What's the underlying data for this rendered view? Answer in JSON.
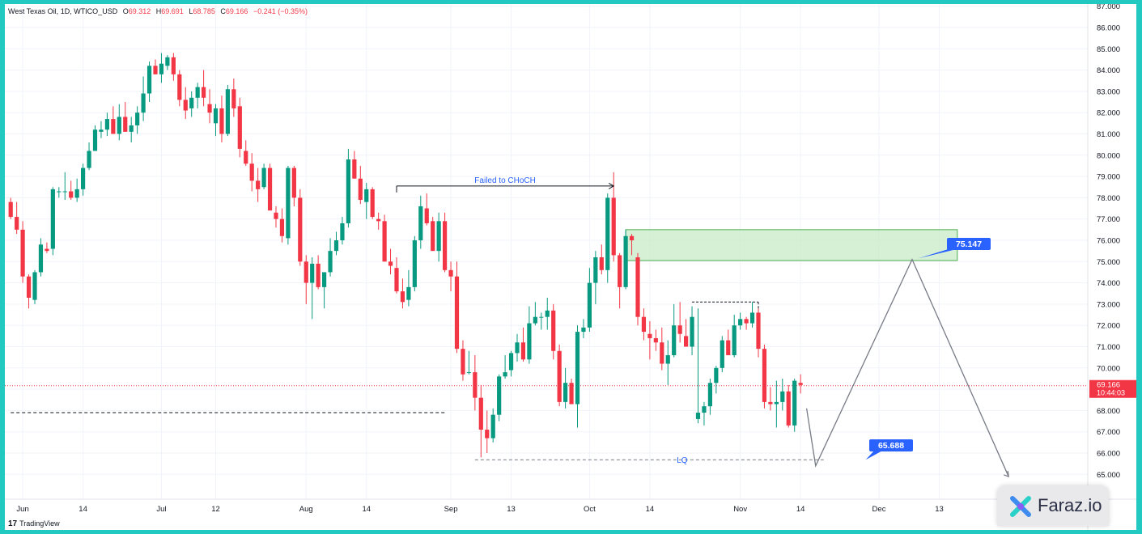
{
  "header": {
    "symbol": "West Texas Oil, 1D, WTICO_USD",
    "open_label": "O",
    "open": "69.312",
    "high_label": "H",
    "high": "69.691",
    "low_label": "L",
    "low": "68.785",
    "close_label": "C",
    "close": "69.166",
    "change": "−0.241 (−0.35%)"
  },
  "footer": {
    "brand": "TradingView"
  },
  "watermark": {
    "text": "Faraz.io"
  },
  "colors": {
    "up": "#089981",
    "down": "#f23645",
    "zone": "#c8ebc8",
    "label_bg": "#2962ff",
    "frame": "#22c9c0"
  },
  "chart_data": {
    "type": "candlestick",
    "ylim": [
      64.6,
      87.0
    ],
    "y_ticks": [
      "65.000",
      "66.000",
      "67.000",
      "68.000",
      "69.000",
      "70.000",
      "71.000",
      "72.000",
      "73.000",
      "74.000",
      "75.000",
      "76.000",
      "77.000",
      "78.000",
      "79.000",
      "80.000",
      "81.000",
      "82.000",
      "83.000",
      "84.000",
      "85.000",
      "86.000",
      "87.000"
    ],
    "x_labels": [
      {
        "label": "Jun",
        "idx": 2
      },
      {
        "label": "14",
        "idx": 12
      },
      {
        "label": "Jul",
        "idx": 25
      },
      {
        "label": "12",
        "idx": 34
      },
      {
        "label": "Aug",
        "idx": 49
      },
      {
        "label": "14",
        "idx": 59
      },
      {
        "label": "Sep",
        "idx": 73
      },
      {
        "label": "13",
        "idx": 83
      },
      {
        "label": "Oct",
        "idx": 96
      },
      {
        "label": "14",
        "idx": 106
      },
      {
        "label": "Nov",
        "idx": 121
      },
      {
        "label": "14",
        "idx": 131
      },
      {
        "label": "Dec",
        "idx": 144
      },
      {
        "label": "13",
        "idx": 154
      }
    ],
    "last_price": {
      "value": "69.166",
      "countdown": "10:44:03"
    },
    "candles": [
      [
        77.8,
        78.0,
        77.0,
        77.1
      ],
      [
        77.1,
        77.8,
        76.3,
        76.5
      ],
      [
        76.5,
        76.9,
        74.0,
        74.3
      ],
      [
        74.3,
        74.4,
        72.8,
        73.3
      ],
      [
        73.2,
        74.6,
        73.0,
        74.5
      ],
      [
        74.5,
        76.1,
        74.3,
        75.8
      ],
      [
        75.6,
        75.9,
        75.4,
        75.5
      ],
      [
        75.6,
        78.5,
        75.3,
        78.4
      ],
      [
        78.3,
        78.5,
        78.0,
        78.3
      ],
      [
        78.3,
        79.2,
        77.9,
        78.3
      ],
      [
        78.3,
        78.8,
        77.9,
        78.0
      ],
      [
        78.0,
        78.9,
        77.8,
        78.4
      ],
      [
        78.4,
        79.6,
        78.1,
        79.4
      ],
      [
        79.4,
        80.6,
        79.3,
        80.2
      ],
      [
        80.2,
        81.4,
        80.2,
        81.2
      ],
      [
        81.1,
        81.6,
        80.8,
        81.2
      ],
      [
        81.2,
        82.0,
        80.9,
        81.7
      ],
      [
        81.7,
        82.3,
        81.0,
        81.0
      ],
      [
        81.0,
        82.4,
        80.7,
        81.8
      ],
      [
        81.8,
        82.5,
        81.1,
        81.1
      ],
      [
        81.1,
        81.8,
        80.6,
        81.4
      ],
      [
        81.4,
        82.3,
        81.0,
        82.0
      ],
      [
        82.0,
        83.7,
        81.6,
        82.9
      ],
      [
        82.9,
        84.4,
        82.5,
        84.2
      ],
      [
        84.2,
        84.5,
        83.8,
        83.8
      ],
      [
        83.8,
        84.8,
        83.4,
        84.3
      ],
      [
        84.2,
        84.7,
        84.0,
        84.6
      ],
      [
        84.6,
        84.8,
        83.5,
        83.8
      ],
      [
        83.8,
        84.0,
        82.3,
        82.6
      ],
      [
        82.6,
        83.2,
        81.7,
        82.1
      ],
      [
        82.2,
        83.0,
        81.8,
        82.7
      ],
      [
        82.7,
        83.4,
        82.2,
        83.2
      ],
      [
        83.2,
        84.0,
        82.3,
        82.7
      ],
      [
        82.4,
        83.1,
        81.5,
        82.0
      ],
      [
        81.5,
        82.4,
        80.9,
        82.2
      ],
      [
        82.2,
        82.8,
        80.6,
        81.0
      ],
      [
        81.0,
        83.3,
        80.9,
        83.1
      ],
      [
        83.1,
        83.6,
        81.8,
        82.2
      ],
      [
        82.3,
        82.7,
        79.9,
        80.3
      ],
      [
        80.2,
        80.7,
        79.5,
        79.6
      ],
      [
        79.6,
        80.1,
        78.3,
        78.8
      ],
      [
        78.8,
        79.4,
        77.8,
        78.4
      ],
      [
        78.5,
        79.6,
        78.4,
        79.4
      ],
      [
        79.4,
        79.6,
        77.5,
        77.4
      ],
      [
        77.3,
        77.6,
        76.6,
        77.0
      ],
      [
        77.0,
        77.5,
        75.9,
        76.2
      ],
      [
        76.1,
        79.5,
        75.8,
        79.4
      ],
      [
        79.4,
        79.5,
        77.6,
        78.0
      ],
      [
        78.0,
        78.4,
        74.8,
        75.0
      ],
      [
        75.0,
        75.3,
        73.0,
        74.0
      ],
      [
        74.0,
        75.2,
        72.3,
        74.9
      ],
      [
        74.9,
        75.3,
        73.7,
        73.8
      ],
      [
        73.8,
        74.5,
        72.8,
        74.5
      ],
      [
        74.5,
        76.1,
        74.3,
        75.5
      ],
      [
        75.5,
        76.4,
        75.3,
        76.0
      ],
      [
        76.0,
        77.1,
        75.8,
        76.8
      ],
      [
        76.8,
        80.3,
        76.6,
        79.8
      ],
      [
        79.8,
        80.2,
        78.9,
        78.9
      ],
      [
        78.9,
        79.5,
        77.7,
        77.9
      ],
      [
        77.8,
        78.7,
        77.0,
        78.4
      ],
      [
        78.4,
        78.5,
        77.0,
        77.1
      ],
      [
        77.0,
        77.3,
        76.5,
        76.9
      ],
      [
        76.9,
        77.2,
        75.0,
        75.0
      ],
      [
        75.0,
        75.6,
        74.4,
        74.8
      ],
      [
        74.7,
        75.2,
        73.5,
        73.6
      ],
      [
        73.6,
        74.2,
        72.8,
        73.1
      ],
      [
        73.2,
        74.6,
        72.9,
        73.8
      ],
      [
        73.8,
        76.2,
        73.6,
        76.0
      ],
      [
        76.0,
        78.1,
        75.6,
        77.6
      ],
      [
        77.5,
        78.2,
        76.7,
        76.8
      ],
      [
        76.9,
        77.1,
        75.5,
        75.5
      ],
      [
        75.5,
        77.3,
        75.0,
        76.9
      ],
      [
        76.9,
        77.3,
        74.5,
        74.6
      ],
      [
        74.6,
        75.0,
        73.6,
        74.3
      ],
      [
        74.3,
        75.0,
        70.7,
        70.9
      ],
      [
        70.9,
        71.3,
        69.4,
        69.7
      ],
      [
        69.8,
        70.8,
        69.7,
        69.8
      ],
      [
        69.8,
        70.6,
        68.0,
        68.6
      ],
      [
        68.6,
        69.2,
        65.8,
        67.1
      ],
      [
        67.1,
        68.0,
        66.0,
        66.7
      ],
      [
        66.7,
        68.1,
        66.5,
        67.8
      ],
      [
        67.8,
        69.7,
        67.5,
        69.6
      ],
      [
        69.6,
        70.6,
        69.5,
        69.8
      ],
      [
        69.9,
        70.8,
        69.6,
        70.7
      ],
      [
        70.7,
        71.6,
        70.3,
        71.2
      ],
      [
        71.2,
        71.9,
        70.3,
        70.4
      ],
      [
        70.4,
        72.9,
        70.2,
        72.1
      ],
      [
        72.1,
        73.1,
        72.0,
        72.4
      ],
      [
        72.4,
        72.6,
        71.8,
        72.4
      ],
      [
        72.4,
        73.3,
        71.8,
        72.7
      ],
      [
        72.7,
        73.0,
        70.4,
        70.8
      ],
      [
        70.8,
        71.1,
        68.2,
        68.4
      ],
      [
        68.4,
        70.0,
        68.1,
        69.3
      ],
      [
        69.3,
        69.5,
        68.3,
        68.3
      ],
      [
        68.3,
        72.0,
        67.2,
        71.7
      ],
      [
        71.7,
        72.3,
        71.4,
        71.9
      ],
      [
        71.9,
        74.7,
        71.7,
        74.0
      ],
      [
        74.0,
        75.5,
        73.0,
        75.2
      ],
      [
        75.2,
        75.8,
        74.4,
        74.6
      ],
      [
        74.6,
        78.2,
        74.0,
        78.0
      ],
      [
        78.0,
        79.2,
        75.0,
        75.3
      ],
      [
        75.3,
        75.4,
        72.8,
        73.8
      ],
      [
        73.8,
        76.5,
        73.7,
        76.2
      ],
      [
        76.2,
        76.3,
        75.3,
        76.0
      ],
      [
        75.2,
        75.4,
        72.0,
        72.4
      ],
      [
        72.4,
        72.8,
        71.3,
        71.7
      ],
      [
        71.6,
        72.2,
        70.4,
        71.4
      ],
      [
        71.4,
        71.8,
        70.8,
        71.2
      ],
      [
        71.2,
        71.9,
        69.9,
        70.2
      ],
      [
        70.2,
        71.3,
        69.2,
        70.6
      ],
      [
        70.6,
        73.0,
        70.5,
        72.0
      ],
      [
        72.0,
        73.1,
        71.2,
        71.6
      ],
      [
        71.5,
        72.3,
        71.0,
        71.0
      ],
      [
        71.0,
        72.9,
        70.6,
        72.4
      ],
      [
        67.6,
        72.8,
        67.4,
        67.9
      ],
      [
        67.9,
        68.4,
        67.3,
        68.2
      ],
      [
        68.2,
        69.5,
        67.8,
        69.3
      ],
      [
        69.3,
        70.1,
        68.8,
        70.0
      ],
      [
        70.0,
        71.5,
        69.8,
        71.3
      ],
      [
        71.3,
        71.8,
        70.8,
        70.6
      ],
      [
        70.6,
        72.5,
        70.5,
        72.0
      ],
      [
        72.0,
        72.6,
        71.8,
        72.3
      ],
      [
        72.3,
        72.4,
        71.8,
        72.1
      ],
      [
        72.1,
        73.1,
        71.9,
        72.6
      ],
      [
        72.6,
        72.8,
        70.5,
        70.9
      ],
      [
        70.9,
        71.1,
        68.1,
        68.4
      ],
      [
        68.4,
        69.1,
        68.0,
        68.3
      ],
      [
        68.3,
        69.4,
        67.2,
        68.4
      ],
      [
        68.4,
        69.5,
        68.0,
        68.9
      ],
      [
        68.9,
        69.2,
        67.2,
        67.3
      ],
      [
        67.3,
        69.5,
        67.0,
        69.4
      ],
      [
        69.3,
        69.7,
        68.8,
        69.2
      ]
    ],
    "annotations": {
      "choch": {
        "text": "Failed to CHoCH",
        "from_idx": 64,
        "to_idx": 100,
        "y": 78.55
      },
      "high_level": {
        "from_idx": 113,
        "to_idx": 124,
        "y": 73.1
      },
      "lq": {
        "text": "LQ",
        "from_idx": 77,
        "to_idx": 135,
        "y": 65.688
      },
      "left_level": {
        "from_idx": 0,
        "to_idx": 72,
        "y": 67.9
      },
      "zone": {
        "from_idx": 102,
        "to_idx": 157,
        "y_top": 76.5,
        "y_bottom": 75.05
      },
      "label_high": {
        "text": "75.147",
        "y": 75.147
      },
      "label_low": {
        "text": "65.688",
        "y": 65.688
      },
      "projection": [
        {
          "idx": 132,
          "y": 68.1
        },
        {
          "idx": 133.5,
          "y": 65.4
        },
        {
          "idx": 149.5,
          "y": 75.1
        },
        {
          "idx": 165.5,
          "y": 64.9
        }
      ]
    }
  }
}
